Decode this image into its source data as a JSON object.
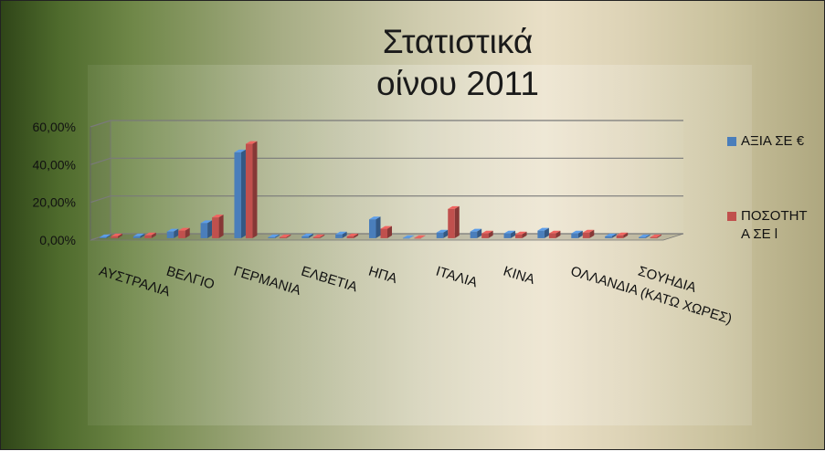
{
  "chart_data": {
    "type": "bar",
    "title_lines": [
      "Στατιστικά",
      "οίνου 2011"
    ],
    "categories": [
      "ΑΥΣΤΡΑΛΙΑ",
      "",
      "ΒΕΛΓΙΟ",
      "",
      "ΓΕΡΜΑΝΙΑ",
      "",
      "ΕΛΒΕΤΙΑ",
      "",
      "ΗΠΑ",
      "",
      "ΙΤΑΛΙΑ",
      "",
      "ΚΙΝΑ",
      "",
      "ΟΛΛΑΝΔΙΑ (ΚΑΤΩ ΧΩΡΕΣ)",
      "",
      "ΣΟΥΗΔΙΑ"
    ],
    "visible_category_labels": [
      "ΑΥΣΤΡΑΛΙΑ",
      "ΒΕΛΓΙΟ",
      "ΓΕΡΜΑΝΙΑ",
      "ΕΛΒΕΤΙΑ",
      "ΗΠΑ",
      "ΙΤΑΛΙΑ",
      "ΚΙΝΑ",
      "ΟΛΛΑΝΔΙΑ (ΚΑΤΩ ΧΩΡΕΣ)",
      "ΣΟΥΗΔΙΑ"
    ],
    "series": [
      {
        "name": "ΑΞΙΑ ΣΕ €",
        "color": "#4a7ebb",
        "values": [
          0.5,
          1.0,
          3.5,
          8.0,
          45.5,
          0.5,
          1.0,
          2.0,
          10.0,
          0.1,
          3.0,
          3.5,
          2.5,
          4.0,
          2.5,
          1.0,
          0.5
        ]
      },
      {
        "name": "ΠΟΣΟΤΗΤΑ ΣΕ l",
        "legend_lines": [
          "ΠΟΣΟΤΗΤ",
          "Α ΣΕ l"
        ],
        "color": "#c0504d",
        "values": [
          1.0,
          1.5,
          4.0,
          11.0,
          50.0,
          0.5,
          0.5,
          1.0,
          5.0,
          0.1,
          15.5,
          2.5,
          2.0,
          2.5,
          3.0,
          1.5,
          0.5
        ]
      }
    ],
    "y_tick_labels": [
      "0,00%",
      "20,00%",
      "40,00%",
      "60,00%"
    ],
    "ylim": [
      0,
      60
    ],
    "gridlines": true,
    "legend_position": "right"
  }
}
